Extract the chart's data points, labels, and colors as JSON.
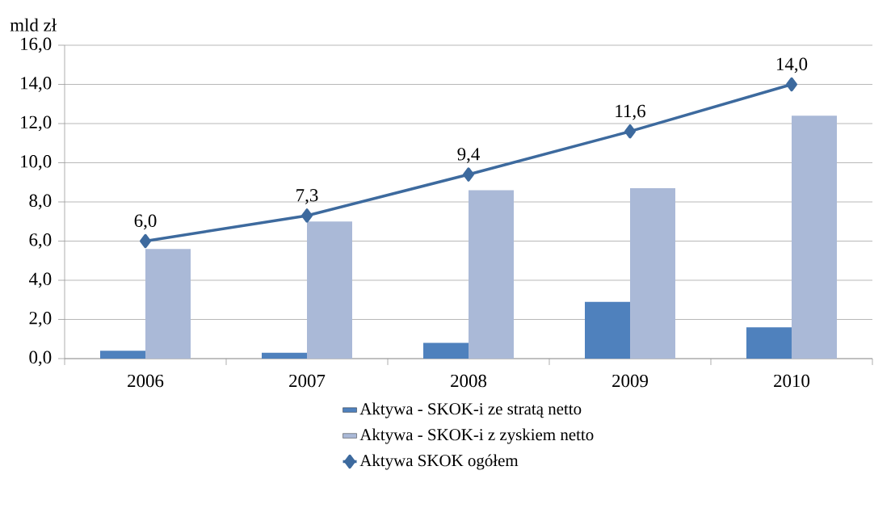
{
  "chart_data": {
    "type": "bar",
    "ylabel": "mld zł",
    "categories": [
      "2006",
      "2007",
      "2008",
      "2009",
      "2010"
    ],
    "series": [
      {
        "name": "Aktywa - SKOK-i ze stratą netto",
        "color": "#4f81bd",
        "values": [
          0.4,
          0.3,
          0.8,
          2.9,
          1.6
        ]
      },
      {
        "name": "Aktywa - SKOK-i z zyskiem netto",
        "color": "#aab9d7",
        "values": [
          5.6,
          7.0,
          8.6,
          8.7,
          12.4
        ]
      },
      {
        "name": "Aktywa SKOK ogółem",
        "type": "line",
        "color": "#3d6a9e",
        "marker": "diamond",
        "values": [
          6.0,
          7.3,
          9.4,
          11.6,
          14.0
        ],
        "value_labels": [
          "6,0",
          "7,3",
          "9,4",
          "11,6",
          "14,0"
        ]
      }
    ],
    "ylim": [
      0,
      16
    ],
    "yticks": [
      {
        "value": 0,
        "label": "0,0"
      },
      {
        "value": 2,
        "label": "2,0"
      },
      {
        "value": 4,
        "label": "4,0"
      },
      {
        "value": 6,
        "label": "6,0"
      },
      {
        "value": 8,
        "label": "8,0"
      },
      {
        "value": 10,
        "label": "10,0"
      },
      {
        "value": 12,
        "label": "12,0"
      },
      {
        "value": 14,
        "label": "14,0"
      },
      {
        "value": 16,
        "label": "16,0"
      }
    ],
    "grid": "y",
    "legend": "bottom"
  }
}
